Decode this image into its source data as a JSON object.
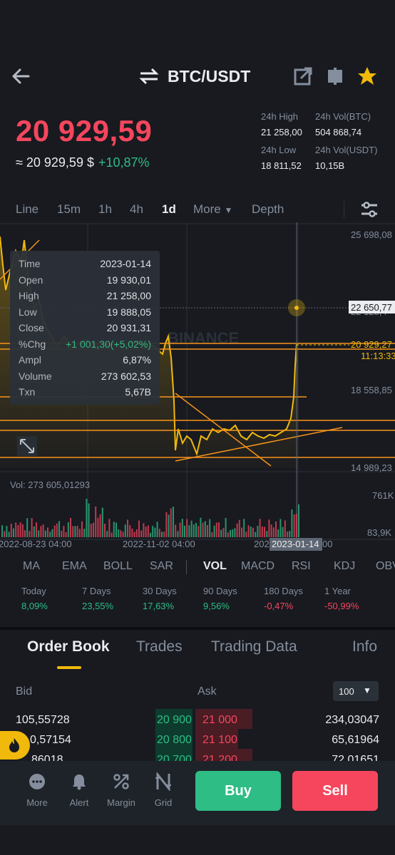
{
  "header": {
    "pair": "BTC/USDT"
  },
  "price": {
    "last": "20 929,59",
    "approx": "≈ 20 929,59 $",
    "change": "+10,87%"
  },
  "stats": {
    "high_label": "24h High",
    "high_value": "21 258,00",
    "vol_btc_label": "24h Vol(BTC)",
    "vol_btc_value": "504 868,74",
    "low_label": "24h Low",
    "low_value": "18 811,52",
    "vol_usdt_label": "24h Vol(USDT)",
    "vol_usdt_value": "10,15B"
  },
  "timeframes": [
    "Line",
    "15m",
    "1h",
    "4h",
    "1d",
    "More",
    "Depth"
  ],
  "active_timeframe": "1d",
  "tooltip": {
    "rows": [
      {
        "label": "Time",
        "value": "2023-01-14"
      },
      {
        "label": "Open",
        "value": "19 930,01"
      },
      {
        "label": "High",
        "value": "21 258,00"
      },
      {
        "label": "Low",
        "value": "19 888,05"
      },
      {
        "label": "Close",
        "value": "20 931,31"
      },
      {
        "label": "%Chg",
        "value": "+1 001,30(+5,02%)"
      },
      {
        "label": "Ampl",
        "value": "6,87%"
      },
      {
        "label": "Volume",
        "value": "273 602,53"
      },
      {
        "label": "Txn",
        "value": "5,67B"
      }
    ]
  },
  "chart": {
    "y_labels": [
      "25 698,08",
      "22 128,4",
      "18 558,85",
      "14 989,23"
    ],
    "crosshair_price": "22 650,77",
    "last_price_tag": "20 929,27",
    "countdown": "11:13:33",
    "vol_label": "Vol: 273 605,01293",
    "vol_axis_top": "761K",
    "vol_axis_bottom": "83,9K",
    "x_labels": [
      "2022-08-23 04:00",
      "2022-11-02 04:00",
      "2023"
    ],
    "x_highlight": "2023-01-14",
    "x_highlight_suffix": "00",
    "watermark": "BINANCE",
    "accent": "#f0b90b",
    "line_color": "#f7931a"
  },
  "chart_data": {
    "type": "line",
    "x": [
      "2022-08-23",
      "2022-11-02",
      "2023-01-14"
    ],
    "series": [
      {
        "values": [
          20500,
          20300,
          20929
        ]
      }
    ],
    "ylim": [
      14989.23,
      25698.08
    ]
  },
  "indicators": [
    "MA",
    "EMA",
    "BOLL",
    "SAR",
    "VOL",
    "MACD",
    "RSI",
    "KDJ",
    "OBV"
  ],
  "active_indicator": "VOL",
  "performance": [
    {
      "label": "Today",
      "value": "8,09%",
      "positive": true
    },
    {
      "label": "7 Days",
      "value": "23,55%",
      "positive": true
    },
    {
      "label": "30 Days",
      "value": "17,63%",
      "positive": true
    },
    {
      "label": "90 Days",
      "value": "9,56%",
      "positive": true
    },
    {
      "label": "180 Days",
      "value": "-0,47%",
      "positive": false
    },
    {
      "label": "1 Year",
      "value": "-50,99%",
      "positive": false
    }
  ],
  "tabs": [
    "Order Book",
    "Trades",
    "Trading Data",
    "Info"
  ],
  "orderbook": {
    "bid_label": "Bid",
    "ask_label": "Ask",
    "depth_select": "100",
    "rows": [
      {
        "bid_qty": "105,55728",
        "bid_price": "20 900",
        "ask_price": "21 000",
        "ask_qty": "234,03047"
      },
      {
        "bid_qty": "0,57154",
        "bid_price": "20 800",
        "ask_price": "21 100",
        "ask_qty": "65,61964"
      },
      {
        "bid_qty": "86018",
        "bid_price": "20 700",
        "ask_price": "21 200",
        "ask_qty": "72,01651"
      }
    ]
  },
  "bottom_nav": [
    {
      "label": "More",
      "icon": "more-dots-icon"
    },
    {
      "label": "Alert",
      "icon": "bell-icon"
    },
    {
      "label": "Margin",
      "icon": "margin-icon"
    },
    {
      "label": "Grid",
      "icon": "grid-icon"
    }
  ],
  "buttons": {
    "buy": "Buy",
    "sell": "Sell"
  }
}
